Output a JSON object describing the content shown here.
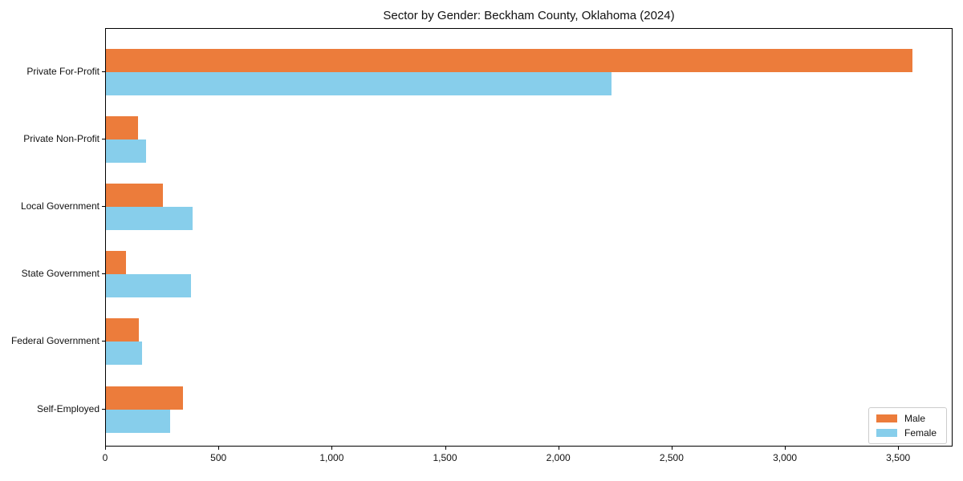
{
  "chart_data": {
    "type": "bar",
    "orientation": "horizontal",
    "title": "Sector by Gender: Beckham County, Oklahoma (2024)",
    "categories": [
      "Private For-Profit",
      "Private Non-Profit",
      "Local Government",
      "State Government",
      "Federal Government",
      "Self-Employed"
    ],
    "series": [
      {
        "name": "Male",
        "color": "#ec7c3b",
        "values": [
          3560,
          142,
          252,
          89,
          145,
          340
        ]
      },
      {
        "name": "Female",
        "color": "#87ceeb",
        "values": [
          2230,
          177,
          383,
          375,
          159,
          283
        ]
      }
    ],
    "xlabel": "",
    "ylabel": "",
    "xlim": [
      0,
      3740
    ],
    "xticks": [
      0,
      500,
      1000,
      1500,
      2000,
      2500,
      3000,
      3500
    ],
    "xtick_labels": [
      "0",
      "500",
      "1,000",
      "1,500",
      "2,000",
      "2,500",
      "3,000",
      "3,500"
    ],
    "grid": false,
    "legend": {
      "position": "lower right"
    }
  }
}
